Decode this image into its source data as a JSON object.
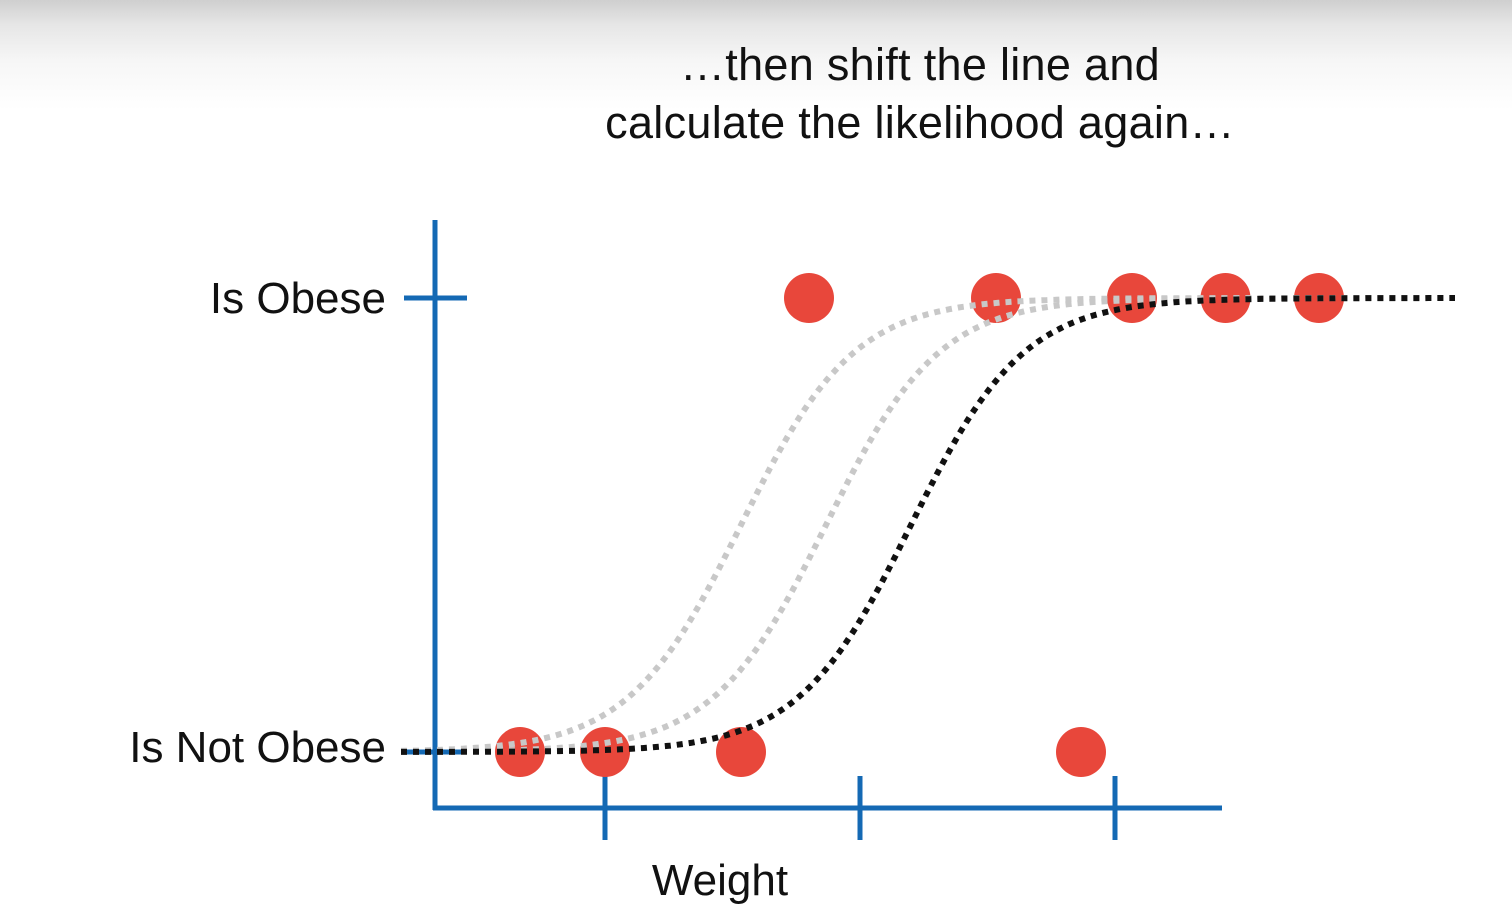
{
  "caption": {
    "line1": "…then shift the line and",
    "line2": "calculate the likelihood again…"
  },
  "colors": {
    "axis": "#1469b4",
    "points": "#e8473b",
    "current_curve": "#111111",
    "previous_curves": "#c8c8c8"
  },
  "chart_data": {
    "type": "scatter",
    "xlabel": "Weight",
    "ylabel": "",
    "y_categories": [
      "Is Not Obese",
      "Is Obese"
    ],
    "x_tick_count": 3,
    "xlim": [
      0,
      10
    ],
    "ylim": [
      0,
      1
    ],
    "points": [
      {
        "x": 1.0,
        "y": 0
      },
      {
        "x": 1.5,
        "y": 0
      },
      {
        "x": 2.3,
        "y": 0
      },
      {
        "x": 4.3,
        "y": 0
      },
      {
        "x": 2.7,
        "y": 1
      },
      {
        "x": 3.8,
        "y": 1
      },
      {
        "x": 4.6,
        "y": 1
      },
      {
        "x": 5.15,
        "y": 1
      },
      {
        "x": 5.7,
        "y": 1
      }
    ],
    "x_ticks": [
      1.5,
      3.0,
      4.5
    ],
    "curves": [
      {
        "role": "previous",
        "midpoint": 2.3,
        "steepness": 3.0
      },
      {
        "role": "previous",
        "midpoint": 2.8,
        "steepness": 3.0
      },
      {
        "role": "current",
        "midpoint": 3.3,
        "steepness": 3.0
      }
    ],
    "curve_x_range": [
      0.3,
      6.5
    ],
    "grid": false,
    "legend": "none"
  }
}
